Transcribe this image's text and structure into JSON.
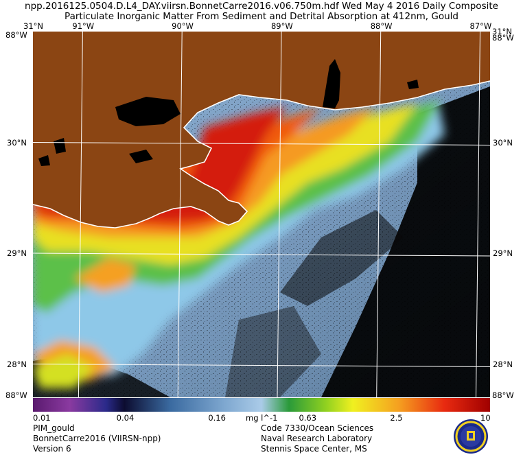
{
  "header": {
    "line1": "npp.2016125.0504.D.L4_DAY.viirsn.BonnetCarre2016.v06.750m.hdf    Wed May  4 2016 Daily Composite",
    "line2": "Particulate Inorganic Matter From Sediment and Detrital Absorption at 412nm, Gould"
  },
  "map": {
    "lon_range": [
      -91.5,
      -86.9
    ],
    "lat_range": [
      27.7,
      31.0
    ],
    "lon_ticks": [
      {
        "value": -91,
        "label": "91°W"
      },
      {
        "value": -90,
        "label": "90°W"
      },
      {
        "value": -89,
        "label": "89°W"
      },
      {
        "value": -88,
        "label": "88°W"
      },
      {
        "value": -87,
        "label": "87°W"
      }
    ],
    "lat_ticks": [
      {
        "value": 30,
        "label": "30°N"
      },
      {
        "value": 29,
        "label": "29°N"
      },
      {
        "value": 28,
        "label": "28°N"
      }
    ],
    "corner_top_left": "31°N",
    "corner_top_right": "31°N",
    "corner_side": "88°W",
    "corner_bottom": "88°W",
    "colors": {
      "land": "#8b4513",
      "water_clear": "#6e8fb0",
      "no_data": "#000000",
      "grid": "#ffffff"
    }
  },
  "colorbar": {
    "unit": "mg l^-1",
    "scale": "log",
    "range": [
      0.01,
      10
    ],
    "ticks": [
      "0.01",
      "0.04",
      "0.16",
      "0.63",
      "2.5",
      "10"
    ]
  },
  "footer": {
    "left": [
      "PIM_gould",
      "BonnetCarre2016 (VIIRSN-npp)",
      "Version 6"
    ],
    "right": [
      "Code 7330/Ocean Sciences",
      "Naval Research Laboratory",
      "Stennis Space Center, MS"
    ],
    "seal_icon": "navy-seal-icon"
  }
}
